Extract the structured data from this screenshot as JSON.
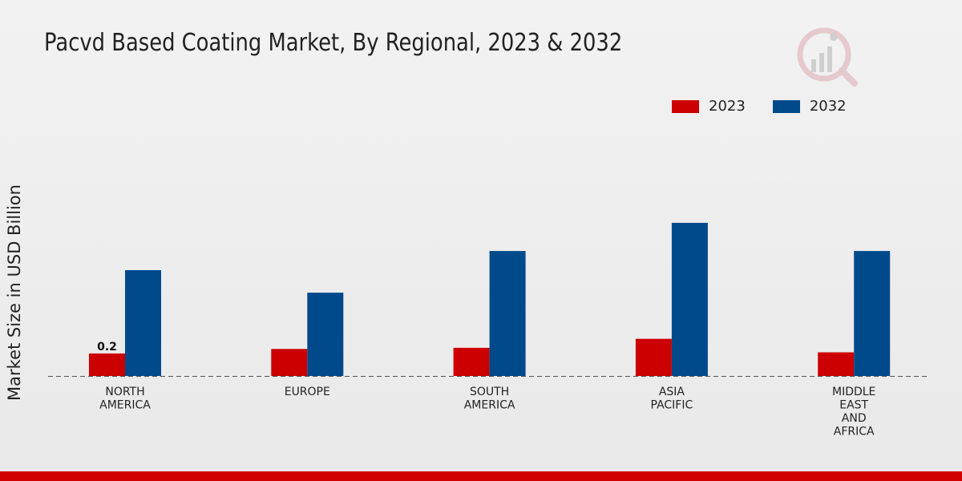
{
  "chart_data": {
    "type": "bar",
    "title": "Pacvd Based Coating Market, By Regional, 2023 & 2032",
    "xlabel": "",
    "ylabel": "Market Size in USD Billion",
    "categories": [
      "NORTH\nAMERICA",
      "EUROPE",
      "SOUTH\nAMERICA",
      "ASIA\nPACIFIC",
      "MIDDLE\nEAST\nAND\nAFRICA"
    ],
    "series": [
      {
        "name": "2023",
        "color": "#cc0000",
        "values": [
          0.2,
          0.24,
          0.25,
          0.33,
          0.21
        ]
      },
      {
        "name": "2032",
        "color": "#004a8c",
        "values": [
          0.94,
          0.74,
          1.11,
          1.36,
          1.11
        ]
      }
    ],
    "data_labels": [
      {
        "series": "2023",
        "category_index": 0,
        "text": "0.2"
      }
    ],
    "ylim": [
      0,
      2.2
    ],
    "grid": false,
    "legend_position": "top-right"
  }
}
